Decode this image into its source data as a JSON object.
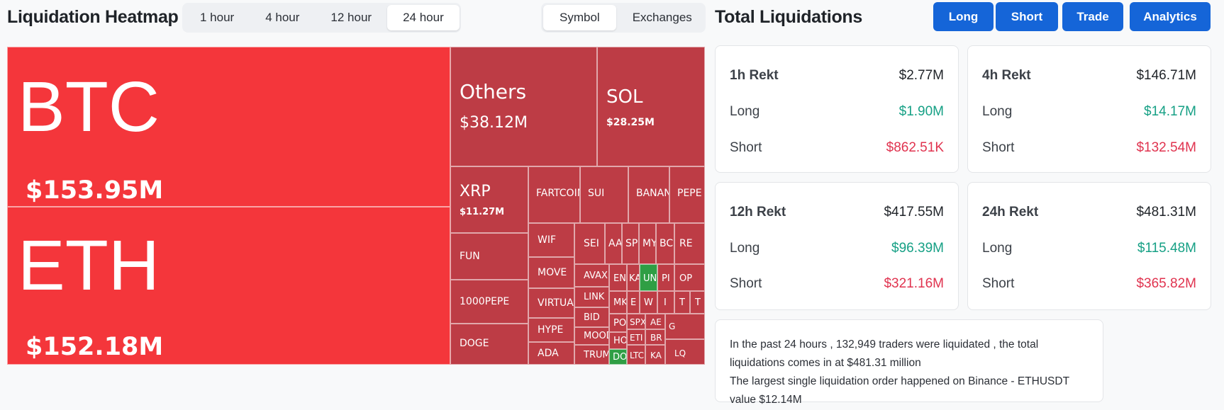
{
  "heatmap": {
    "title": "Liquidation Heatmap",
    "time_options": [
      "1 hour",
      "4 hour",
      "12 hour",
      "24 hour"
    ],
    "time_selected": "24 hour",
    "view_options": [
      "Symbol",
      "Exchanges"
    ],
    "view_selected": "Symbol",
    "tiles": [
      {
        "name": "BTC",
        "value": "$153.95M"
      },
      {
        "name": "ETH",
        "value": "$152.18M"
      },
      {
        "name": "Others",
        "value": "$38.12M"
      },
      {
        "name": "SOL",
        "value": "$28.25M"
      },
      {
        "name": "XRP",
        "value": "$11.27M"
      },
      {
        "name": "FARTCOIN"
      },
      {
        "name": "SUI"
      },
      {
        "name": "BANANA"
      },
      {
        "name": "PEPE"
      },
      {
        "name": "FUN"
      },
      {
        "name": "1000PEPE"
      },
      {
        "name": "DOGE"
      },
      {
        "name": "WIF"
      },
      {
        "name": "MOVE"
      },
      {
        "name": "VIRTUAL"
      },
      {
        "name": "HYPE"
      },
      {
        "name": "ADA"
      },
      {
        "name": "SEI"
      },
      {
        "name": "AAVE"
      },
      {
        "name": "SPX"
      },
      {
        "name": "MY"
      },
      {
        "name": "BCH"
      },
      {
        "name": "RE"
      },
      {
        "name": "AVAX"
      },
      {
        "name": "EN"
      },
      {
        "name": "KA"
      },
      {
        "name": "UNI"
      },
      {
        "name": "PI"
      },
      {
        "name": "OP"
      },
      {
        "name": "LINK"
      },
      {
        "name": "MK"
      },
      {
        "name": "E"
      },
      {
        "name": "W"
      },
      {
        "name": "I"
      },
      {
        "name": "T"
      },
      {
        "name": "T"
      },
      {
        "name": "BID"
      },
      {
        "name": "PO"
      },
      {
        "name": "SPX"
      },
      {
        "name": "AE"
      },
      {
        "name": "G"
      },
      {
        "name": "MOODENG"
      },
      {
        "name": "HO"
      },
      {
        "name": "ETI"
      },
      {
        "name": "BR"
      },
      {
        "name": "TRUMP"
      },
      {
        "name": "DOT"
      },
      {
        "name": "LTC"
      },
      {
        "name": "KA"
      },
      {
        "name": "LQ"
      }
    ]
  },
  "totals": {
    "title": "Total Liquidations",
    "buttons": [
      "Long",
      "Short",
      "Trade",
      "Analytics"
    ],
    "cards": [
      {
        "label": "1h Rekt",
        "total": "$2.77M",
        "long_label": "Long",
        "long": "$1.90M",
        "short_label": "Short",
        "short": "$862.51K"
      },
      {
        "label": "4h Rekt",
        "total": "$146.71M",
        "long_label": "Long",
        "long": "$14.17M",
        "short_label": "Short",
        "short": "$132.54M"
      },
      {
        "label": "12h Rekt",
        "total": "$417.55M",
        "long_label": "Long",
        "long": "$96.39M",
        "short_label": "Short",
        "short": "$321.16M"
      },
      {
        "label": "24h Rekt",
        "total": "$481.31M",
        "long_label": "Long",
        "long": "$115.48M",
        "short_label": "Short",
        "short": "$365.82M"
      }
    ],
    "note_line1": "In the past 24 hours , 132,949 traders were liquidated , the total liquidations comes in at $481.31 million",
    "note_line2": "The largest single liquidation order happened on Binance - ETHUSDT value $12.14M"
  },
  "colors": {
    "heat_high": "#f4363b",
    "heat_mid": "#bd3c45",
    "heat_gain": "#2f9e44",
    "long_value": "#16a085",
    "short_value": "#e0334f",
    "button": "#1565d8"
  }
}
